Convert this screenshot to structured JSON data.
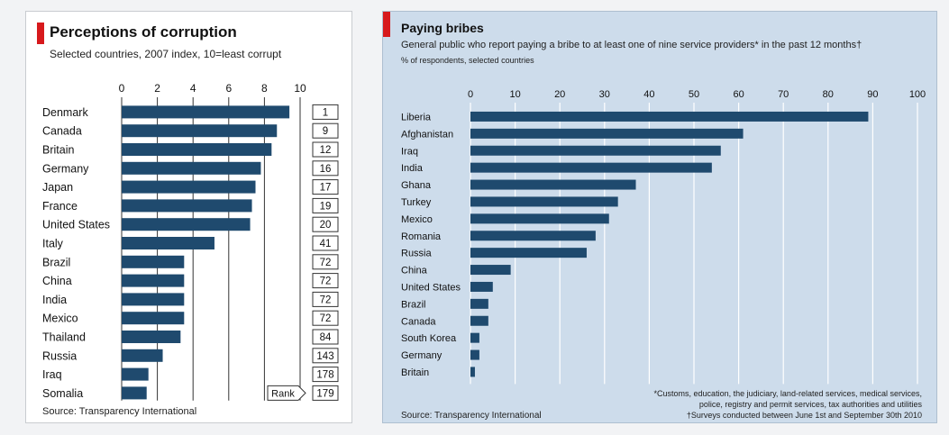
{
  "chart_data": [
    {
      "type": "bar",
      "title": "Perceptions of corruption",
      "subtitle": "Selected countries, 2007 index, 10=least corrupt",
      "categories": [
        "Denmark",
        "Canada",
        "Britain",
        "Germany",
        "Japan",
        "France",
        "United States",
        "Italy",
        "Brazil",
        "China",
        "India",
        "Mexico",
        "Thailand",
        "Russia",
        "Iraq",
        "Somalia"
      ],
      "values": [
        9.4,
        8.7,
        8.4,
        7.8,
        7.5,
        7.3,
        7.2,
        5.2,
        3.5,
        3.5,
        3.5,
        3.5,
        3.3,
        2.3,
        1.5,
        1.4
      ],
      "ranks": [
        "1",
        "9",
        "12",
        "16",
        "17",
        "19",
        "20",
        "41",
        "72",
        "72",
        "72",
        "72",
        "84",
        "143",
        "178",
        "179"
      ],
      "rank_label": "Rank",
      "xlim": [
        0,
        10
      ],
      "ticks": [
        "0",
        "2",
        "4",
        "6",
        "8",
        "10"
      ],
      "grid": true,
      "source": "Source: Transparency International",
      "bar_color": "#1f4a6e",
      "accent_color": "#d7191c"
    },
    {
      "type": "bar",
      "title": "Paying bribes",
      "subtitle": "General public who report paying a bribe to at least one of nine service providers* in the past 12 months†",
      "unit_note": "% of respondents, selected countries",
      "categories": [
        "Liberia",
        "Afghanistan",
        "Iraq",
        "India",
        "Ghana",
        "Turkey",
        "Mexico",
        "Romania",
        "Russia",
        "China",
        "United States",
        "Brazil",
        "Canada",
        "South Korea",
        "Germany",
        "Britain"
      ],
      "values": [
        89,
        61,
        56,
        54,
        37,
        33,
        31,
        28,
        26,
        9,
        5,
        4,
        4,
        2,
        2,
        1
      ],
      "xlim": [
        0,
        100
      ],
      "ticks": [
        "0",
        "10",
        "20",
        "30",
        "40",
        "50",
        "60",
        "70",
        "80",
        "90",
        "100"
      ],
      "grid": true,
      "footnotes": [
        "*Customs, education, the judiciary, land-related services, medical services,",
        "police, registry and permit services, tax authorities and utilities",
        "†Surveys conducted between June 1st and September 30th 2010"
      ],
      "source": "Source: Transparency International",
      "bar_color": "#1f4a6e",
      "background": "#cddceb",
      "accent_color": "#d7191c"
    }
  ]
}
